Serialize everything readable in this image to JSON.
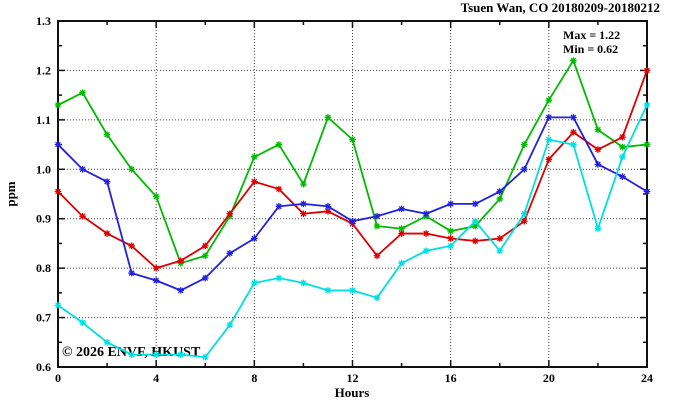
{
  "title": "Tsuen Wan, CO 20180209-20180212",
  "watermark": "© 2026 ENVF, HKUST",
  "annotation": {
    "max_label": "Max = 1.22",
    "min_label": "Min = 0.62"
  },
  "axes": {
    "ylabel": "ppm",
    "xlabel": "Hours"
  },
  "colors": {
    "border": "#111111",
    "grid": "#444444",
    "watermark": "#d4d4d4"
  },
  "chart_data": {
    "type": "line",
    "title": "Tsuen Wan, CO 20180209-20180212",
    "xlabel": "Hours",
    "ylabel": "ppm",
    "xlim": [
      0,
      24
    ],
    "ylim": [
      0.6,
      1.3
    ],
    "x_major_ticks": [
      0,
      4,
      8,
      12,
      16,
      20,
      24
    ],
    "x_minor_step": 2,
    "y_major_ticks": [
      0.6,
      0.7,
      0.8,
      0.9,
      1.0,
      1.1,
      1.2,
      1.3
    ],
    "y_minor_step": 0.05,
    "grid": true,
    "legend_position": "none",
    "annotations": [
      "Max = 1.22",
      "Min = 0.62"
    ],
    "x": [
      0,
      1,
      2,
      3,
      4,
      5,
      6,
      7,
      8,
      9,
      10,
      11,
      12,
      13,
      14,
      15,
      16,
      17,
      18,
      19,
      20,
      21,
      22,
      23,
      24
    ],
    "series": [
      {
        "name": "day-1-green",
        "color": "#00bb00",
        "values": [
          1.13,
          1.155,
          1.07,
          1.0,
          0.945,
          0.81,
          0.825,
          0.905,
          1.025,
          1.05,
          0.97,
          1.105,
          1.06,
          0.885,
          0.88,
          0.905,
          0.875,
          0.885,
          0.94,
          1.05,
          1.14,
          1.22,
          1.08,
          1.045,
          1.05
        ]
      },
      {
        "name": "day-2-red",
        "color": "#dd0000",
        "values": [
          0.955,
          0.905,
          0.87,
          0.845,
          0.8,
          0.815,
          0.845,
          0.91,
          0.975,
          0.96,
          0.91,
          0.915,
          0.89,
          0.825,
          0.87,
          0.87,
          0.86,
          0.855,
          0.86,
          0.895,
          1.02,
          1.075,
          1.04,
          1.065,
          1.2
        ]
      },
      {
        "name": "day-3-blue",
        "color": "#2222dd",
        "values": [
          1.05,
          1.0,
          0.975,
          0.79,
          0.775,
          0.755,
          0.78,
          0.83,
          0.86,
          0.925,
          0.93,
          0.925,
          0.895,
          0.905,
          0.92,
          0.91,
          0.93,
          0.93,
          0.955,
          1.0,
          1.105,
          1.105,
          1.01,
          0.985,
          0.955
        ]
      },
      {
        "name": "day-4-cyan",
        "color": "#00e0e0",
        "values": [
          0.725,
          0.69,
          0.65,
          0.625,
          0.625,
          0.625,
          0.62,
          0.685,
          0.77,
          0.78,
          0.77,
          0.755,
          0.755,
          0.74,
          0.81,
          0.835,
          0.845,
          0.895,
          0.835,
          0.91,
          1.06,
          1.05,
          0.88,
          1.025,
          1.13
        ]
      }
    ]
  }
}
